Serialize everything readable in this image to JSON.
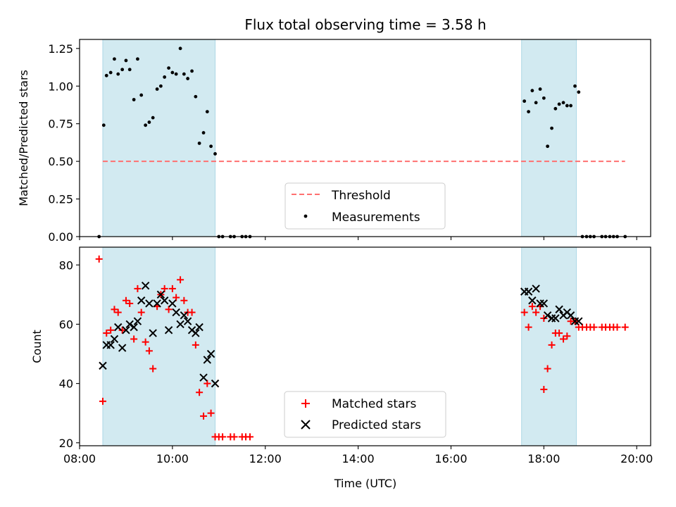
{
  "chart_data": [
    {
      "type": "scatter",
      "title": "Flux total observing time = 3.58 h",
      "ylabel": "Matched/Predicted stars",
      "xlim": [
        8.0,
        20.3
      ],
      "ylim": [
        0.0,
        1.31
      ],
      "yticks": [
        0.0,
        0.25,
        0.5,
        0.75,
        1.0,
        1.25
      ],
      "ytick_labels": [
        "0.00",
        "0.25",
        "0.50",
        "0.75",
        "1.00",
        "1.25"
      ],
      "shaded_spans": [
        [
          8.5,
          10.92
        ],
        [
          17.52,
          18.7
        ]
      ],
      "shade_color": "#add8e6",
      "legend": {
        "placement": "lower-center",
        "entries": [
          "Threshold",
          "Measurements"
        ]
      },
      "series": [
        {
          "name": "Threshold",
          "kind": "dashed-line",
          "color": "#ff7070",
          "points": [
            [
              8.5,
              0.5
            ],
            [
              19.75,
              0.5
            ]
          ]
        },
        {
          "name": "Measurements",
          "kind": "dots",
          "color": "#000000",
          "points": [
            [
              8.42,
              0.0
            ],
            [
              8.52,
              0.74
            ],
            [
              8.58,
              1.07
            ],
            [
              8.67,
              1.09
            ],
            [
              8.75,
              1.18
            ],
            [
              8.83,
              1.08
            ],
            [
              8.92,
              1.11
            ],
            [
              9.0,
              1.17
            ],
            [
              9.08,
              1.11
            ],
            [
              9.17,
              0.91
            ],
            [
              9.25,
              1.18
            ],
            [
              9.33,
              0.94
            ],
            [
              9.42,
              0.74
            ],
            [
              9.5,
              0.76
            ],
            [
              9.58,
              0.79
            ],
            [
              9.67,
              0.98
            ],
            [
              9.75,
              1.0
            ],
            [
              9.83,
              1.06
            ],
            [
              9.92,
              1.12
            ],
            [
              10.0,
              1.09
            ],
            [
              10.08,
              1.08
            ],
            [
              10.17,
              1.25
            ],
            [
              10.25,
              1.08
            ],
            [
              10.33,
              1.05
            ],
            [
              10.42,
              1.1
            ],
            [
              10.5,
              0.93
            ],
            [
              10.58,
              0.62
            ],
            [
              10.67,
              0.69
            ],
            [
              10.75,
              0.83
            ],
            [
              10.83,
              0.6
            ],
            [
              10.92,
              0.55
            ],
            [
              11.0,
              0.0
            ],
            [
              11.08,
              0.0
            ],
            [
              11.25,
              0.0
            ],
            [
              11.33,
              0.0
            ],
            [
              11.5,
              0.0
            ],
            [
              11.58,
              0.0
            ],
            [
              11.67,
              0.0
            ],
            [
              17.58,
              0.9
            ],
            [
              17.67,
              0.83
            ],
            [
              17.75,
              0.97
            ],
            [
              17.83,
              0.89
            ],
            [
              17.92,
              0.98
            ],
            [
              18.0,
              0.92
            ],
            [
              18.08,
              0.6
            ],
            [
              18.17,
              0.72
            ],
            [
              18.25,
              0.85
            ],
            [
              18.33,
              0.88
            ],
            [
              18.42,
              0.89
            ],
            [
              18.5,
              0.87
            ],
            [
              18.58,
              0.87
            ],
            [
              18.67,
              1.0
            ],
            [
              18.75,
              0.96
            ],
            [
              18.83,
              0.0
            ],
            [
              18.92,
              0.0
            ],
            [
              19.0,
              0.0
            ],
            [
              19.08,
              0.0
            ],
            [
              19.25,
              0.0
            ],
            [
              19.33,
              0.0
            ],
            [
              19.42,
              0.0
            ],
            [
              19.5,
              0.0
            ],
            [
              19.58,
              0.0
            ],
            [
              19.75,
              0.0
            ]
          ]
        }
      ]
    },
    {
      "type": "scatter",
      "xlabel": "Time (UTC)",
      "ylabel": "Count",
      "xlim": [
        8.0,
        20.3
      ],
      "ylim": [
        19.0,
        86.0
      ],
      "xticks": [
        8,
        10,
        12,
        14,
        16,
        18,
        20
      ],
      "xtick_labels": [
        "08:00",
        "10:00",
        "12:00",
        "14:00",
        "16:00",
        "18:00",
        "20:00"
      ],
      "yticks": [
        20,
        40,
        60,
        80
      ],
      "ytick_labels": [
        "20",
        "40",
        "60",
        "80"
      ],
      "shaded_spans": [
        [
          8.5,
          10.92
        ],
        [
          17.52,
          18.7
        ]
      ],
      "shade_color": "#add8e6",
      "legend": {
        "placement": "lower-center",
        "entries": [
          "Matched stars",
          "Predicted stars"
        ]
      },
      "series": [
        {
          "name": "Matched stars",
          "marker": "plus",
          "color": "#ff0000",
          "points": [
            [
              8.42,
              82
            ],
            [
              8.5,
              34
            ],
            [
              8.58,
              57
            ],
            [
              8.67,
              58
            ],
            [
              8.75,
              65
            ],
            [
              8.83,
              64
            ],
            [
              8.92,
              58
            ],
            [
              9.0,
              68
            ],
            [
              9.08,
              67
            ],
            [
              9.17,
              55
            ],
            [
              9.25,
              72
            ],
            [
              9.33,
              64
            ],
            [
              9.42,
              54
            ],
            [
              9.5,
              51
            ],
            [
              9.58,
              45
            ],
            [
              9.67,
              66
            ],
            [
              9.75,
              70
            ],
            [
              9.83,
              72
            ],
            [
              9.92,
              65
            ],
            [
              10.0,
              72
            ],
            [
              10.08,
              69
            ],
            [
              10.17,
              75
            ],
            [
              10.25,
              68
            ],
            [
              10.33,
              64
            ],
            [
              10.42,
              64
            ],
            [
              10.5,
              53
            ],
            [
              10.58,
              37
            ],
            [
              10.67,
              29
            ],
            [
              10.75,
              40
            ],
            [
              10.83,
              30
            ],
            [
              10.92,
              22
            ],
            [
              11.0,
              22
            ],
            [
              11.08,
              22
            ],
            [
              11.25,
              22
            ],
            [
              11.33,
              22
            ],
            [
              11.5,
              22
            ],
            [
              11.58,
              22
            ],
            [
              11.67,
              22
            ],
            [
              17.58,
              64
            ],
            [
              17.67,
              59
            ],
            [
              17.75,
              66
            ],
            [
              17.83,
              64
            ],
            [
              17.92,
              66
            ],
            [
              18.0,
              62
            ],
            [
              18.0,
              38
            ],
            [
              18.08,
              45
            ],
            [
              18.17,
              53
            ],
            [
              18.25,
              57
            ],
            [
              18.33,
              57
            ],
            [
              18.42,
              55
            ],
            [
              18.5,
              56
            ],
            [
              18.58,
              61
            ],
            [
              18.67,
              61
            ],
            [
              18.75,
              59
            ],
            [
              18.83,
              59
            ],
            [
              18.92,
              59
            ],
            [
              19.0,
              59
            ],
            [
              19.08,
              59
            ],
            [
              19.25,
              59
            ],
            [
              19.33,
              59
            ],
            [
              19.42,
              59
            ],
            [
              19.5,
              59
            ],
            [
              19.58,
              59
            ],
            [
              19.75,
              59
            ]
          ]
        },
        {
          "name": "Predicted stars",
          "marker": "x",
          "color": "#000000",
          "points": [
            [
              8.5,
              46
            ],
            [
              8.58,
              53
            ],
            [
              8.67,
              53
            ],
            [
              8.75,
              55
            ],
            [
              8.83,
              59
            ],
            [
              8.92,
              52
            ],
            [
              9.0,
              58
            ],
            [
              9.08,
              60
            ],
            [
              9.17,
              59
            ],
            [
              9.25,
              61
            ],
            [
              9.33,
              68
            ],
            [
              9.42,
              73
            ],
            [
              9.5,
              67
            ],
            [
              9.58,
              57
            ],
            [
              9.67,
              67
            ],
            [
              9.75,
              70
            ],
            [
              9.83,
              68
            ],
            [
              9.92,
              58
            ],
            [
              10.0,
              67
            ],
            [
              10.08,
              64
            ],
            [
              10.17,
              60
            ],
            [
              10.25,
              63
            ],
            [
              10.33,
              61
            ],
            [
              10.42,
              58
            ],
            [
              10.5,
              57
            ],
            [
              10.58,
              59
            ],
            [
              10.67,
              42
            ],
            [
              10.75,
              48
            ],
            [
              10.83,
              50
            ],
            [
              10.92,
              40
            ],
            [
              17.58,
              71
            ],
            [
              17.67,
              71
            ],
            [
              17.75,
              68
            ],
            [
              17.83,
              72
            ],
            [
              17.92,
              67
            ],
            [
              18.0,
              67
            ],
            [
              18.08,
              63
            ],
            [
              18.17,
              62
            ],
            [
              18.25,
              62
            ],
            [
              18.33,
              65
            ],
            [
              18.42,
              63
            ],
            [
              18.5,
              64
            ],
            [
              18.58,
              63
            ],
            [
              18.67,
              61
            ],
            [
              18.75,
              61
            ]
          ]
        }
      ]
    }
  ]
}
